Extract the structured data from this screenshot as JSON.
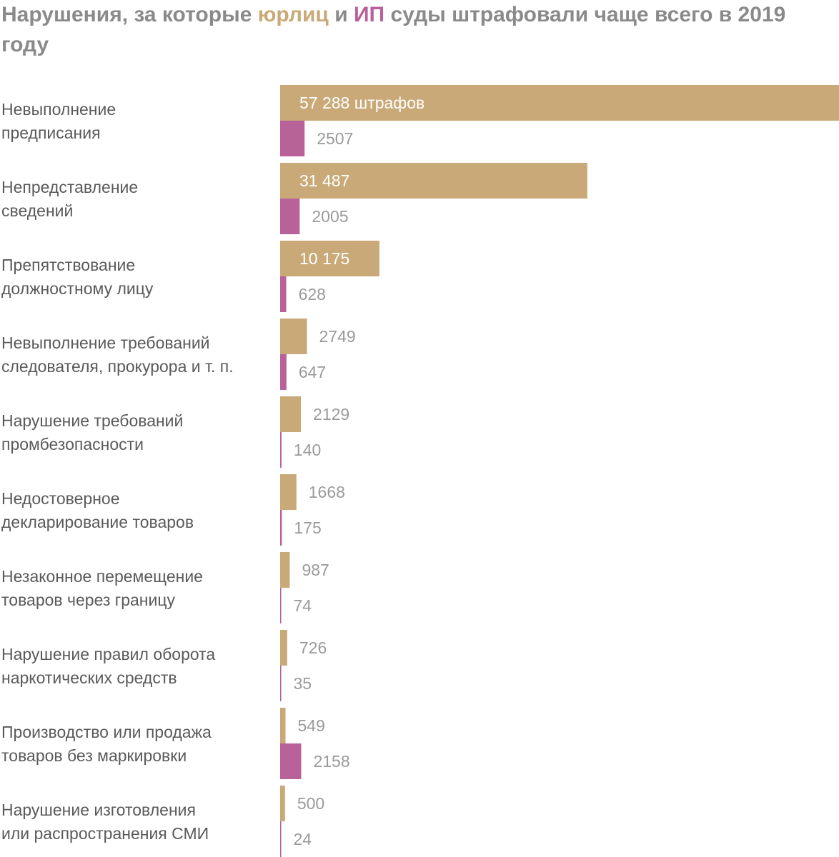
{
  "title": {
    "part1": "Нарушения, за которые ",
    "legal": "юрлиц",
    "part2": " и ",
    "ie": "ИП",
    "part3": " суды штрафовали чаще всего в 2019 году"
  },
  "colors": {
    "legal": "#C9A977",
    "ie": "#B9629A"
  },
  "chart_data": {
    "type": "bar",
    "orientation": "horizontal",
    "title": "Нарушения, за которые юрлиц и ИП суды штрафовали чаще всего в 2019 году",
    "unit_label": "штрафов",
    "series": [
      {
        "name": "юрлиц",
        "color": "#C9A977",
        "values": [
          57288,
          31487,
          10175,
          2749,
          2129,
          1668,
          987,
          726,
          549,
          500
        ],
        "labels": [
          "57 288 штрафов",
          "31 487",
          "10 175",
          "2749",
          "2129",
          "1668",
          "987",
          "726",
          "549",
          "500"
        ]
      },
      {
        "name": "ИП",
        "color": "#B9629A",
        "values": [
          2507,
          2005,
          628,
          647,
          140,
          175,
          74,
          35,
          2158,
          24
        ],
        "labels": [
          "2507",
          "2005",
          "628",
          "647",
          "140",
          "175",
          "74",
          "35",
          "2158",
          "24"
        ]
      }
    ],
    "categories": [
      [
        "Невыполнение",
        "предписания"
      ],
      [
        "Непредставление",
        "сведений"
      ],
      [
        "Препятствование",
        "должностному лицу"
      ],
      [
        "Невыполнение требований",
        "следователя, прокурора и т. п."
      ],
      [
        "Нарушение требований",
        "промбезопасности"
      ],
      [
        "Недостоверное",
        "декларирование товаров"
      ],
      [
        "Незаконное перемещение",
        "товаров через границу"
      ],
      [
        "Нарушение правил оборота",
        "наркотических средств"
      ],
      [
        "Производство или продажа",
        "товаров без маркировки"
      ],
      [
        "Нарушение изготовления",
        "или распространения СМИ"
      ]
    ],
    "xlim": [
      0,
      57288
    ],
    "grid": false,
    "legend": "in-title"
  }
}
